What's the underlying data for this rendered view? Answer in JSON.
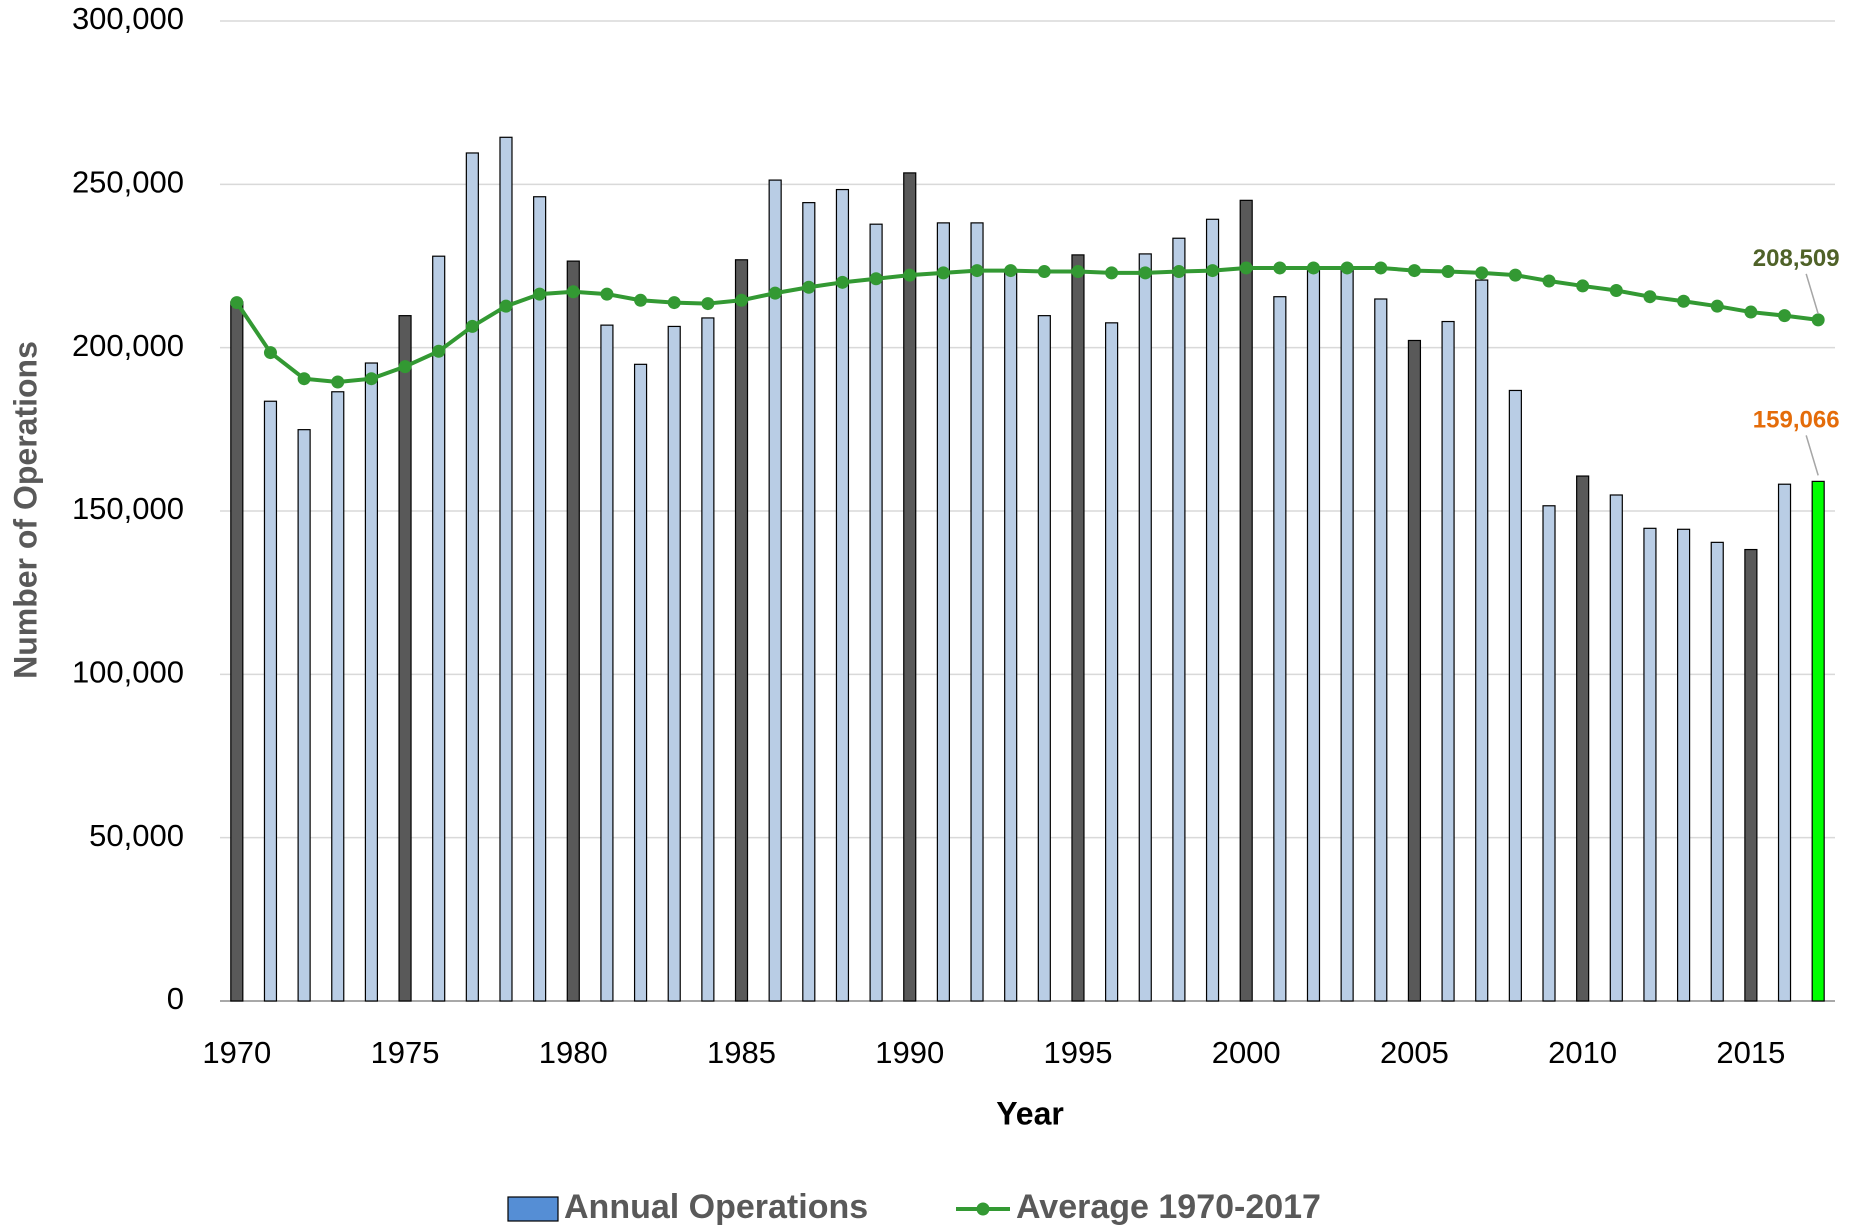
{
  "chart_data": {
    "type": "bar-line",
    "x": [
      1970,
      1971,
      1972,
      1973,
      1974,
      1975,
      1976,
      1977,
      1978,
      1979,
      1980,
      1981,
      1982,
      1983,
      1984,
      1985,
      1986,
      1987,
      1988,
      1989,
      1990,
      1991,
      1992,
      1993,
      1994,
      1995,
      1996,
      1997,
      1998,
      1999,
      2000,
      2001,
      2002,
      2003,
      2004,
      2005,
      2006,
      2007,
      2008,
      2009,
      2010,
      2011,
      2012,
      2013,
      2014,
      2015,
      2016,
      2017
    ],
    "series": [
      {
        "name": "Annual Operations",
        "type": "bar",
        "color": "#558ed5",
        "bar_colors": [
          "#595959",
          "#b9cde5",
          "#b9cde5",
          "#b9cde5",
          "#b9cde5",
          "#595959",
          "#b9cde5",
          "#b9cde5",
          "#b9cde5",
          "#b9cde5",
          "#595959",
          "#b9cde5",
          "#b9cde5",
          "#b9cde5",
          "#b9cde5",
          "#595959",
          "#b9cde5",
          "#b9cde5",
          "#b9cde5",
          "#b9cde5",
          "#595959",
          "#b9cde5",
          "#b9cde5",
          "#b9cde5",
          "#b9cde5",
          "#595959",
          "#b9cde5",
          "#b9cde5",
          "#b9cde5",
          "#b9cde5",
          "#595959",
          "#b9cde5",
          "#b9cde5",
          "#b9cde5",
          "#b9cde5",
          "#595959",
          "#b9cde5",
          "#b9cde5",
          "#b9cde5",
          "#b9cde5",
          "#595959",
          "#b9cde5",
          "#b9cde5",
          "#b9cde5",
          "#b9cde5",
          "#595959",
          "#b9cde5",
          "#00ff00"
        ],
        "values": [
          214000,
          183600,
          174900,
          186500,
          195300,
          209800,
          228000,
          259600,
          264400,
          246200,
          226500,
          206900,
          194900,
          206500,
          209100,
          226900,
          251300,
          244400,
          248400,
          237800,
          253500,
          238200,
          238200,
          224000,
          209800,
          228400,
          207600,
          228700,
          233500,
          239300,
          245100,
          215600,
          224700,
          224700,
          214900,
          202200,
          208000,
          220700,
          186900,
          151600,
          160700,
          154900,
          144700,
          144400,
          140400,
          138200,
          158200,
          159066
        ],
        "value_labels": [
          null,
          null,
          null,
          null,
          null,
          null,
          null,
          null,
          null,
          null,
          null,
          null,
          null,
          null,
          null,
          null,
          null,
          null,
          null,
          null,
          null,
          null,
          null,
          null,
          null,
          null,
          null,
          null,
          null,
          null,
          null,
          null,
          null,
          null,
          null,
          null,
          null,
          null,
          null,
          null,
          null,
          null,
          null,
          null,
          null,
          null,
          null,
          "159,066"
        ],
        "label_color": "#e46c0a"
      },
      {
        "name": "Average 1970-2017",
        "type": "line",
        "color": "#339933",
        "values": [
          213800,
          198500,
          190500,
          189500,
          190500,
          194200,
          198900,
          206500,
          212700,
          216400,
          217100,
          216400,
          214500,
          213800,
          213500,
          214500,
          216700,
          218500,
          220000,
          221100,
          222200,
          222900,
          223600,
          223600,
          223300,
          223300,
          222900,
          222900,
          223300,
          223600,
          224400,
          224400,
          224400,
          224400,
          224400,
          223600,
          223300,
          222900,
          222200,
          220400,
          218900,
          217500,
          215600,
          214200,
          212700,
          210900,
          209800,
          208509
        ],
        "value_labels": [
          null,
          null,
          null,
          null,
          null,
          null,
          null,
          null,
          null,
          null,
          null,
          null,
          null,
          null,
          null,
          null,
          null,
          null,
          null,
          null,
          null,
          null,
          null,
          null,
          null,
          null,
          null,
          null,
          null,
          null,
          null,
          null,
          null,
          null,
          null,
          null,
          null,
          null,
          null,
          null,
          null,
          null,
          null,
          null,
          null,
          null,
          null,
          "208,509"
        ],
        "label_color": "#4f6228"
      }
    ],
    "xlabel": "Year",
    "ylabel": "Number of Operations",
    "xlim": [
      1969.5,
      2017.5
    ],
    "xticks": [
      1970,
      1975,
      1980,
      1985,
      1990,
      1995,
      2000,
      2005,
      2010,
      2015
    ],
    "ylim": [
      0,
      300000
    ],
    "yticks": [
      0,
      {
        "value": 50000,
        "label": "50,000"
      },
      {
        "value": 100000,
        "label": "100,000"
      },
      {
        "value": 150000,
        "label": "150,000"
      },
      {
        "value": 200000,
        "label": "200,000"
      },
      {
        "value": 250000,
        "label": "250,000"
      },
      {
        "value": 300000,
        "label": "300,000"
      }
    ],
    "grid": true,
    "legend": "bottom"
  }
}
